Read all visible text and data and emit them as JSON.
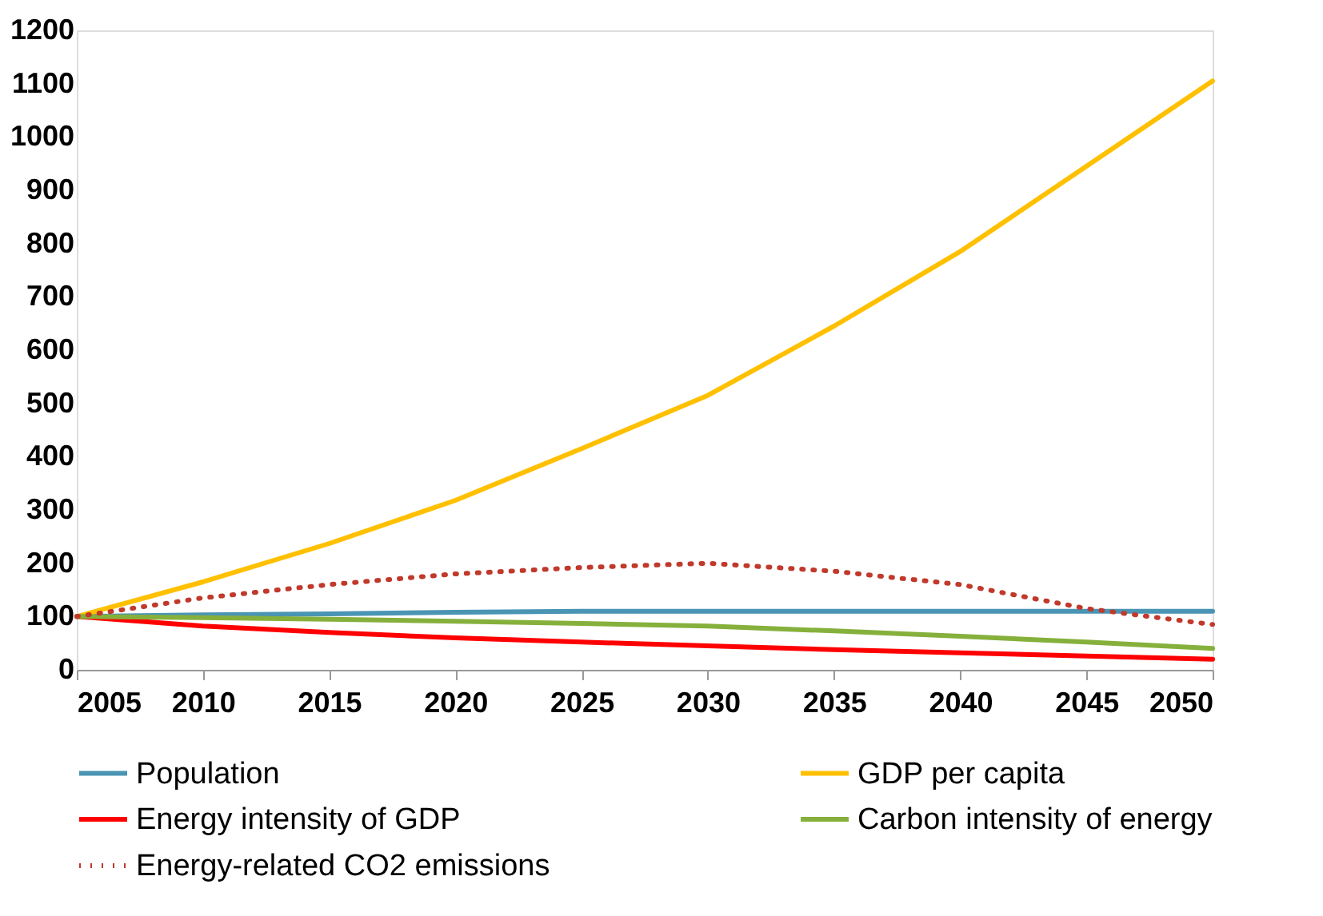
{
  "chart_data": {
    "type": "line",
    "x": [
      2005,
      2010,
      2015,
      2020,
      2025,
      2030,
      2035,
      2040,
      2045,
      2050
    ],
    "xlim": [
      2005,
      2050
    ],
    "xticks": [
      2005,
      2010,
      2015,
      2020,
      2025,
      2030,
      2035,
      2040,
      2045,
      2050
    ],
    "ylim": [
      0,
      1200
    ],
    "yticks": [
      0,
      100,
      200,
      300,
      400,
      500,
      600,
      700,
      800,
      900,
      1000,
      1100,
      1200
    ],
    "grid": false,
    "legend": "bottom",
    "marker": "none",
    "series": [
      {
        "name": "Population",
        "color": "#4a94b4",
        "line_style": "solid",
        "values": [
          100,
          103,
          105,
          108,
          110,
          110,
          110,
          110,
          110,
          110
        ]
      },
      {
        "name": "GDP per capita",
        "color": "#ffc000",
        "line_style": "solid",
        "values": [
          100,
          165,
          237,
          318,
          415,
          515,
          645,
          785,
          945,
          1105
        ]
      },
      {
        "name": "Energy intensity of GDP",
        "color": "#ff0000",
        "line_style": "solid",
        "values": [
          100,
          82,
          70,
          60,
          52,
          45,
          38,
          32,
          26,
          20
        ]
      },
      {
        "name": "Carbon intensity of energy",
        "color": "#86b03c",
        "line_style": "solid",
        "values": [
          100,
          98,
          95,
          91,
          87,
          82,
          73,
          63,
          52,
          40
        ]
      },
      {
        "name": "Energy-related CO2 emissions",
        "color": "#c0392b",
        "line_style": "dotted",
        "values": [
          100,
          135,
          160,
          180,
          192,
          200,
          185,
          160,
          115,
          85
        ]
      }
    ]
  }
}
